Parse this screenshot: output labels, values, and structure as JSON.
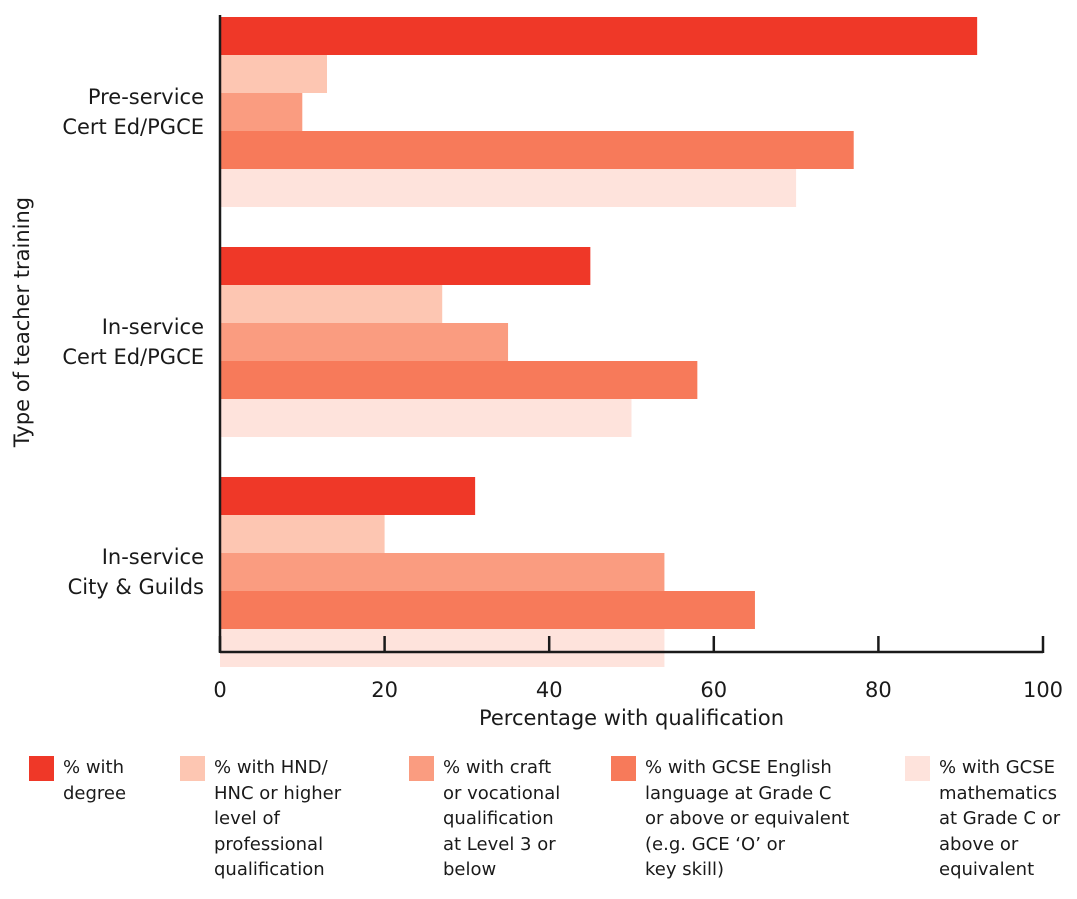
{
  "chart_data": {
    "type": "bar",
    "orientation": "horizontal",
    "ylabel": "Type of teacher training",
    "xlabel": "Percentage with qualification",
    "xlim": [
      0,
      100
    ],
    "xticks": [
      0,
      20,
      40,
      60,
      80,
      100
    ],
    "tick_labels": [
      "0",
      "20",
      "40",
      "60",
      "80",
      "100"
    ],
    "categories": [
      [
        "Pre-service",
        "Cert Ed/PGCE"
      ],
      [
        "In-service",
        "Cert Ed/PGCE"
      ],
      [
        "In-service",
        "City & Guilds"
      ]
    ],
    "series": [
      {
        "name": [
          "% with",
          "degree"
        ],
        "color": "#ef3828",
        "values": [
          92,
          45,
          31
        ]
      },
      {
        "name": [
          "% with HND/",
          "HNC or higher",
          "level of",
          "professional",
          "qualification"
        ],
        "color": "#fdc6b2",
        "values": [
          13,
          27,
          20
        ]
      },
      {
        "name": [
          "% with craft",
          "or vocational",
          "qualification",
          "at Level 3 or",
          "below"
        ],
        "color": "#fa9c80",
        "values": [
          10,
          35,
          54
        ]
      },
      {
        "name": [
          "% with GCSE English",
          "language at Grade C",
          "or above or equivalent",
          "(e.g. GCE ‘O’ or",
          "key skill)"
        ],
        "color": "#f77a5a",
        "values": [
          77,
          58,
          65
        ]
      },
      {
        "name": [
          "% with GCSE",
          "mathematics",
          "at Grade C or",
          "above or",
          "equivalent"
        ],
        "color": "#fee3dc",
        "values": [
          70,
          50,
          54
        ]
      }
    ],
    "grid": false,
    "legend_position": "bottom"
  }
}
